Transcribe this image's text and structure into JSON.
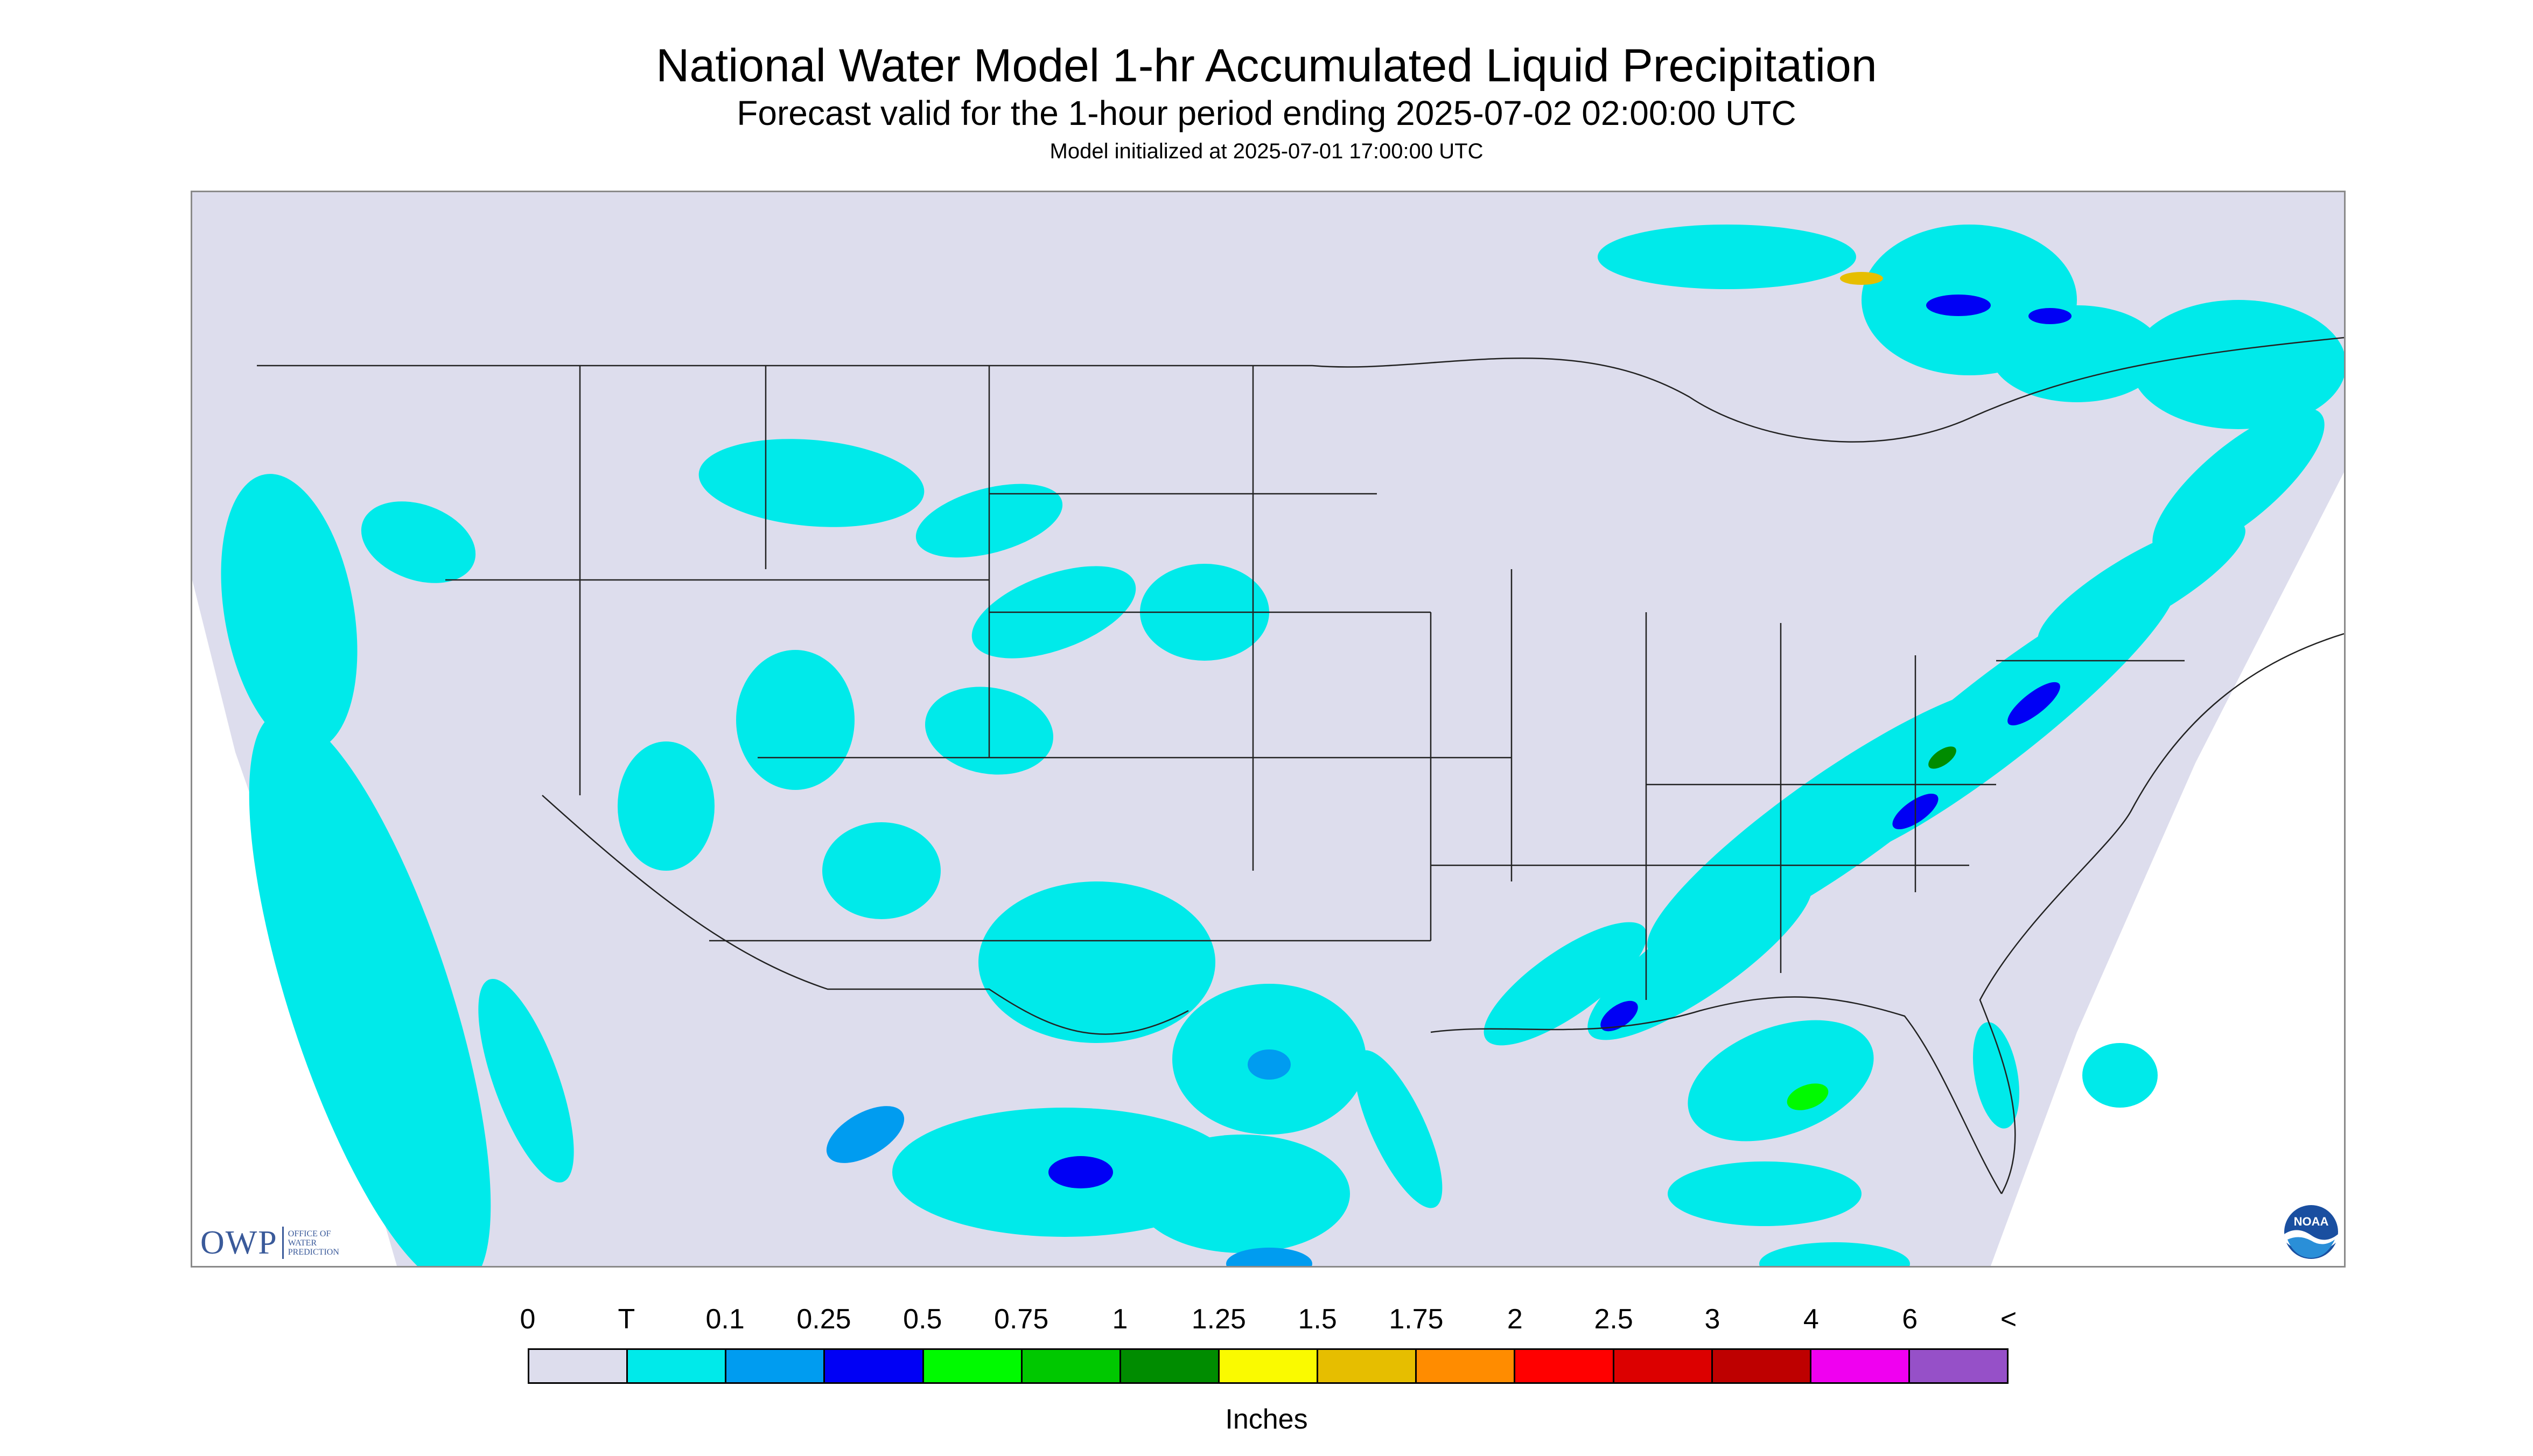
{
  "title": "National Water Model 1-hr Accumulated Liquid Precipitation",
  "subtitle": "Forecast valid for the 1-hour period ending 2025-07-02 02:00:00 UTC",
  "initialized": "Model initialized at 2025-07-01 17:00:00 UTC",
  "colors": {
    "no_data": "#ffffff",
    "zero": "#dddded",
    "trace": "#00eaea",
    "line": "#222222",
    "owp": "#3a5a9a"
  },
  "logos": {
    "owp_main": "OWP",
    "owp_sub": [
      "OFFICE OF",
      "WATER",
      "PREDICTION"
    ],
    "noaa": "NOAA"
  },
  "legend": {
    "labels": [
      "0",
      "T",
      "0.1",
      "0.25",
      "0.5",
      "0.75",
      "1",
      "1.25",
      "1.5",
      "1.75",
      "2",
      "2.5",
      "3",
      "4",
      "6",
      "<"
    ],
    "colors": [
      "#dddded",
      "#00eaea",
      "#009cf0",
      "#0000f5",
      "#00fa00",
      "#00c800",
      "#008c00",
      "#fafa00",
      "#e6be00",
      "#ff8c00",
      "#ff0000",
      "#dc0000",
      "#be0000",
      "#f000f0",
      "#9650c8"
    ],
    "units": "Inches"
  }
}
